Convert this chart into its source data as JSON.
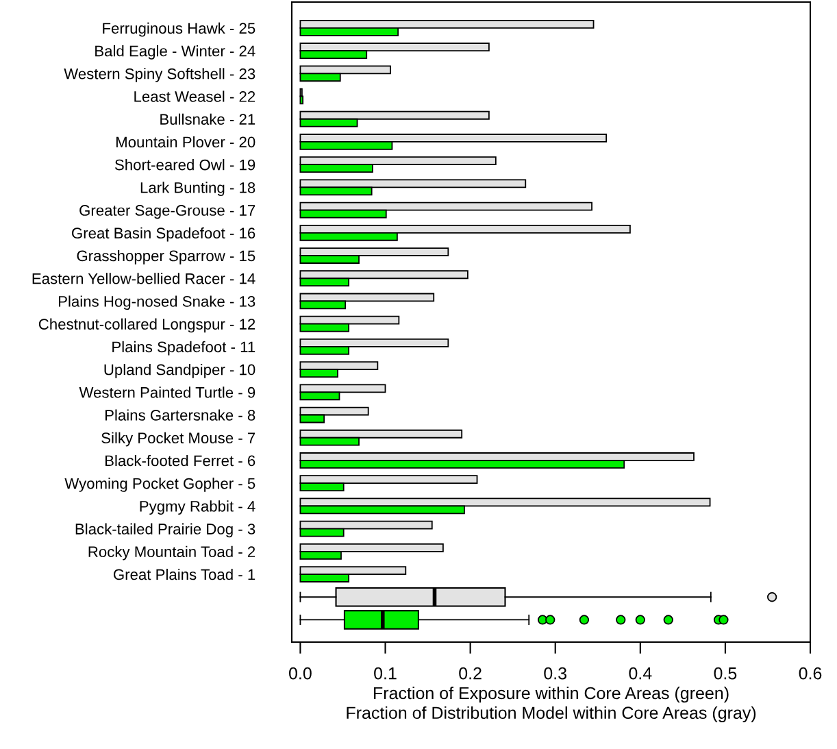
{
  "chart_data": {
    "type": "bar",
    "orientation": "horizontal",
    "categories": [
      "Ferruginous Hawk - 25",
      "Bald Eagle - Winter - 24",
      "Western Spiny Softshell - 23",
      "Least Weasel - 22",
      "Bullsnake - 21",
      "Mountain Plover - 20",
      "Short-eared Owl - 19",
      "Lark Bunting - 18",
      "Greater Sage-Grouse - 17",
      "Great Basin Spadefoot - 16",
      "Grasshopper Sparrow - 15",
      "Eastern Yellow-bellied Racer - 14",
      "Plains Hog-nosed Snake - 13",
      "Chestnut-collared Longspur - 12",
      "Plains Spadefoot - 11",
      "Upland Sandpiper - 10",
      "Western Painted Turtle - 9",
      "Plains Gartersnake - 8",
      "Silky Pocket Mouse - 7",
      "Black-footed Ferret - 6",
      "Wyoming Pocket Gopher - 5",
      "Pygmy Rabbit - 4",
      "Black-tailed Prairie Dog - 3",
      "Rocky Mountain Toad - 2",
      "Great Plains Toad - 1",
      null,
      null
    ],
    "series": [
      {
        "color": "#e3e3e3",
        "values": [
          0.345,
          0.222,
          0.106,
          0.002,
          0.222,
          0.36,
          0.23,
          0.265,
          0.343,
          0.388,
          0.174,
          0.197,
          0.157,
          0.116,
          0.174,
          0.091,
          0.1,
          0.08,
          0.19,
          0.463,
          0.208,
          0.482,
          0.155,
          0.168,
          0.124,
          null,
          null
        ]
      },
      {
        "color": "#00ee00",
        "values": [
          0.115,
          0.078,
          0.047,
          0.003,
          0.067,
          0.108,
          0.085,
          0.084,
          0.101,
          0.114,
          0.069,
          0.057,
          0.053,
          0.057,
          0.057,
          0.044,
          0.046,
          0.028,
          0.069,
          0.381,
          0.051,
          0.193,
          0.051,
          0.048,
          0.057,
          null,
          null
        ]
      },
      {
        "type": "box",
        "color": "#e3e3e3",
        "boxes": [
          null,
          null,
          null,
          null,
          null,
          null,
          null,
          null,
          null,
          null,
          null,
          null,
          null,
          null,
          null,
          null,
          null,
          null,
          null,
          null,
          null,
          null,
          null,
          null,
          null,
          {
            "low": 0,
            "q1": 0.042,
            "median": 0.158,
            "q3": 0.241,
            "high": 0.483,
            "outliers": [
              0.555
            ]
          },
          null
        ]
      },
      {
        "type": "box",
        "color": "#00ee00",
        "boxes": [
          null,
          null,
          null,
          null,
          null,
          null,
          null,
          null,
          null,
          null,
          null,
          null,
          null,
          null,
          null,
          null,
          null,
          null,
          null,
          null,
          null,
          null,
          null,
          null,
          null,
          null,
          {
            "low": 0,
            "q1": 0.052,
            "median": 0.097,
            "q3": 0.139,
            "high": 0.269,
            "outliers": [
              0.285,
              0.294,
              0.334,
              0.377,
              0.4,
              0.433,
              0.492,
              0.498
            ]
          }
        ]
      }
    ],
    "xlim": [
      -0.01,
      0.6
    ],
    "xticks": [
      {
        "value": 0,
        "label": "0.0"
      },
      0.1,
      0.2,
      0.3,
      0.4,
      0.5,
      0.6
    ],
    "xlabel": "Fraction of Exposure within Core Areas (green)\nFraction of Distribution Model within Core Areas (gray)"
  }
}
